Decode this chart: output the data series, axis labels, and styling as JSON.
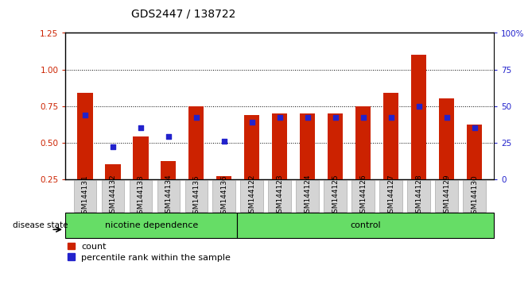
{
  "title": "GDS2447 / 138722",
  "samples": [
    "GSM144131",
    "GSM144132",
    "GSM144133",
    "GSM144134",
    "GSM144135",
    "GSM144136",
    "GSM144122",
    "GSM144123",
    "GSM144124",
    "GSM144125",
    "GSM144126",
    "GSM144127",
    "GSM144128",
    "GSM144129",
    "GSM144130"
  ],
  "red_bars": [
    0.84,
    0.35,
    0.54,
    0.37,
    0.75,
    0.27,
    0.69,
    0.7,
    0.7,
    0.7,
    0.75,
    0.84,
    1.1,
    0.8,
    0.62
  ],
  "blue_squares": [
    0.69,
    0.47,
    0.6,
    0.54,
    0.67,
    0.51,
    0.64,
    0.67,
    0.67,
    0.67,
    0.67,
    0.67,
    0.75,
    0.67,
    0.6
  ],
  "groups": [
    {
      "label": "nicotine dependence",
      "start": 0,
      "end": 6,
      "color": "#66dd66"
    },
    {
      "label": "control",
      "start": 6,
      "end": 15,
      "color": "#66dd66"
    }
  ],
  "group_separator": 6,
  "ylim_left": [
    0.25,
    1.25
  ],
  "ylim_right": [
    0,
    100
  ],
  "yticks_left": [
    0.25,
    0.5,
    0.75,
    1.0,
    1.25
  ],
  "yticks_right": [
    0,
    25,
    50,
    75,
    100
  ],
  "bar_color": "#cc2200",
  "square_color": "#2222cc",
  "background_color": "#ffffff",
  "label_count": "count",
  "label_percentile": "percentile rank within the sample",
  "disease_state_label": "disease state",
  "bar_width": 0.55,
  "tick_gray": "#d4d4d4"
}
